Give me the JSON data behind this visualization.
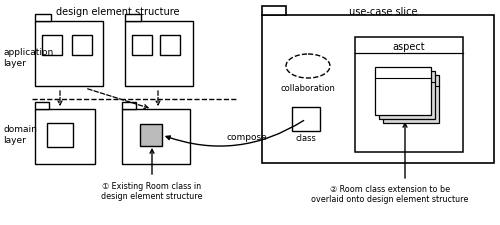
{
  "title_left": "design element structure",
  "title_right": "use-case slice",
  "label_app": "application\nlayer",
  "label_domain": "domain\nlayer",
  "label_compose": "compose",
  "label_collaboration": "collaboration",
  "label_class": "class",
  "label_aspect": "aspect",
  "annotation1": "① Existing Room class in\ndesign element structure",
  "annotation2": "② Room class extension to be\noverlaid onto design element structure",
  "bg_color": "#ffffff",
  "gray_fill": "#bbbbbb"
}
